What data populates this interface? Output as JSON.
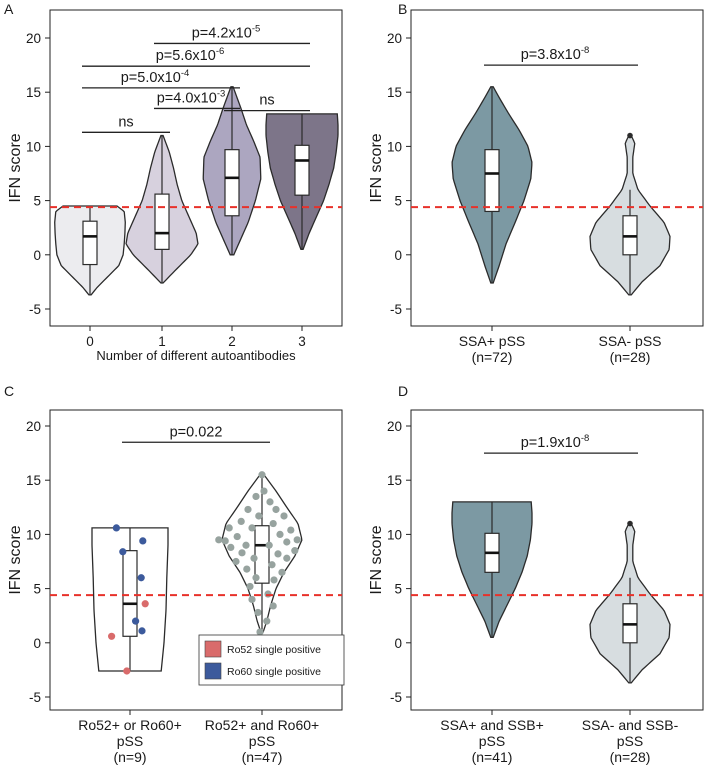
{
  "figure": {
    "threshold": 4.4,
    "colors": {
      "threshold": "#e8312a",
      "axis": "#222222",
      "violin_stroke": "#2b2b2b",
      "box_fill": "#ffffff",
      "ro52": "#d96b6b",
      "ro60": "#3c5a9c",
      "grey_point": "#97a39f"
    }
  },
  "chart_data": [
    {
      "panel": "A",
      "type": "violin",
      "ylabel": "IFN score",
      "xlabel": "Number of different autoantibodies",
      "ylim": [
        -6,
        21
      ],
      "yticks": [
        -5,
        0,
        5,
        10,
        15,
        20
      ],
      "categories": [
        "0",
        "1",
        "2",
        "3"
      ],
      "violins": [
        {
          "label": "0",
          "fill": "#ececef",
          "min": -3.7,
          "max": 4.5,
          "q1": -0.9,
          "median": 1.7,
          "q3": 3.1,
          "whisker_low": -3.7,
          "whisker_high": 4.5,
          "shape": [
            [
              -3.7,
              0.03
            ],
            [
              -3,
              0.2
            ],
            [
              -2,
              0.5
            ],
            [
              -1,
              0.8
            ],
            [
              0,
              0.92
            ],
            [
              1,
              0.95
            ],
            [
              2,
              0.97
            ],
            [
              3,
              0.98
            ],
            [
              4,
              0.95
            ],
            [
              4.5,
              0.75
            ]
          ]
        },
        {
          "label": "1",
          "fill": "#d7d1de",
          "min": -2.6,
          "max": 11.0,
          "q1": 0.5,
          "median": 2.0,
          "q3": 5.6,
          "whisker_low": -2.6,
          "whisker_high": 11.0,
          "shape": [
            [
              -2.6,
              0.03
            ],
            [
              -1.5,
              0.35
            ],
            [
              0,
              0.8
            ],
            [
              1,
              1.0
            ],
            [
              2,
              0.95
            ],
            [
              3.5,
              0.75
            ],
            [
              5,
              0.55
            ],
            [
              6.5,
              0.42
            ],
            [
              8,
              0.32
            ],
            [
              9.5,
              0.2
            ],
            [
              11,
              0.03
            ]
          ]
        },
        {
          "label": "2",
          "fill": "#aca6c0",
          "min": 0.0,
          "max": 15.5,
          "q1": 3.6,
          "median": 7.1,
          "q3": 9.7,
          "whisker_low": 0.0,
          "whisker_high": 15.5,
          "shape": [
            [
              0,
              0.05
            ],
            [
              1.5,
              0.25
            ],
            [
              3,
              0.45
            ],
            [
              5,
              0.65
            ],
            [
              7,
              0.8
            ],
            [
              9,
              0.78
            ],
            [
              10.5,
              0.6
            ],
            [
              12,
              0.4
            ],
            [
              13.5,
              0.25
            ],
            [
              15.5,
              0.03
            ]
          ]
        },
        {
          "label": "3",
          "fill": "#7d7589",
          "min": 0.5,
          "max": 13.0,
          "q1": 5.5,
          "median": 8.7,
          "q3": 10.1,
          "whisker_low": 0.5,
          "whisker_high": 13.0,
          "shape": [
            [
              0.5,
              0.03
            ],
            [
              2,
              0.2
            ],
            [
              3.5,
              0.4
            ],
            [
              5,
              0.6
            ],
            [
              6.5,
              0.75
            ],
            [
              8,
              0.88
            ],
            [
              9.5,
              0.95
            ],
            [
              11,
              1.0
            ],
            [
              12,
              1.0
            ],
            [
              13,
              0.98
            ]
          ]
        }
      ],
      "significance": [
        {
          "from": 0,
          "to": 1,
          "y": 11.3,
          "text": "ns"
        },
        {
          "from": 2,
          "to": 3,
          "y": 13.3,
          "text": "ns"
        },
        {
          "from": 1,
          "to": 2,
          "y": 13.5,
          "text": "p=4.0x10",
          "exp": "-3"
        },
        {
          "from": 0,
          "to": 2,
          "y": 15.4,
          "text": "p=5.0x10",
          "exp": "-4"
        },
        {
          "from": 0,
          "to": 3,
          "y": 17.4,
          "text": "p=5.6x10",
          "exp": "-6"
        },
        {
          "from": 1,
          "to": 3,
          "y": 19.5,
          "text": "p=4.2x10",
          "exp": "-5"
        }
      ]
    },
    {
      "panel": "B",
      "type": "violin",
      "ylabel": "IFN score",
      "xlabel": "",
      "ylim": [
        -6,
        21
      ],
      "yticks": [
        -5,
        0,
        5,
        10,
        15,
        20
      ],
      "categories": [
        "SSA+ pSS",
        "SSA- pSS"
      ],
      "n_labels": [
        "(n=72)",
        "(n=28)"
      ],
      "violins": [
        {
          "label": "SSA+ pSS",
          "fill": "#7c99a3",
          "min": -2.6,
          "max": 15.5,
          "q1": 4.0,
          "median": 7.5,
          "q3": 9.7,
          "whisker_low": -2.6,
          "whisker_high": 15.5,
          "shape": [
            [
              -2.6,
              0.03
            ],
            [
              -1,
              0.18
            ],
            [
              1,
              0.35
            ],
            [
              3,
              0.58
            ],
            [
              5,
              0.8
            ],
            [
              7,
              0.97
            ],
            [
              8.5,
              1.0
            ],
            [
              10,
              0.9
            ],
            [
              11.5,
              0.68
            ],
            [
              13,
              0.42
            ],
            [
              14.5,
              0.18
            ],
            [
              15.5,
              0.03
            ]
          ]
        },
        {
          "label": "SSA- pSS",
          "fill": "#d7dde0",
          "min": -3.7,
          "max": 11.0,
          "q1": 0.0,
          "median": 1.7,
          "q3": 3.6,
          "whisker_low": -3.7,
          "whisker_high": 6.0,
          "shape": [
            [
              -3.7,
              0.03
            ],
            [
              -2.5,
              0.3
            ],
            [
              -1,
              0.75
            ],
            [
              0.5,
              0.98
            ],
            [
              1.7,
              1.0
            ],
            [
              3,
              0.85
            ],
            [
              4.5,
              0.5
            ],
            [
              6,
              0.2
            ],
            [
              7.5,
              0.07
            ],
            [
              9,
              0.07
            ],
            [
              10.3,
              0.12
            ],
            [
              11,
              0.03
            ]
          ],
          "outliers": [
            11.0
          ]
        }
      ],
      "significance": [
        {
          "from": 0,
          "to": 1,
          "y": 17.5,
          "text": "p=3.8x10",
          "exp": "-8"
        }
      ]
    },
    {
      "panel": "C",
      "type": "violin",
      "ylabel": "IFN score",
      "xlabel": "",
      "ylim": [
        -6,
        21
      ],
      "yticks": [
        -5,
        0,
        5,
        10,
        15,
        20
      ],
      "categories": [
        "Ro52+ or Ro60+",
        "Ro52+ and Ro60+"
      ],
      "category_line2": [
        "pSS",
        "pSS"
      ],
      "n_labels": [
        "(n=9)",
        "(n=47)"
      ],
      "violins": [
        {
          "label": "Ro52+ or Ro60+",
          "fill": "#ffffff",
          "min": -2.6,
          "max": 10.6,
          "q1": 0.6,
          "median": 3.6,
          "q3": 8.5,
          "whisker_low": -2.6,
          "whisker_high": 10.6,
          "shape": [
            [
              -2.6,
              0.78
            ],
            [
              0,
              0.85
            ],
            [
              3,
              0.9
            ],
            [
              6,
              0.92
            ],
            [
              9,
              0.95
            ],
            [
              10.6,
              0.95
            ]
          ]
        },
        {
          "label": "Ro52+ and Ro60+",
          "fill": "#ffffff",
          "min": 1.0,
          "max": 15.5,
          "q1": 5.5,
          "median": 9.0,
          "q3": 10.8,
          "whisker_low": 1.0,
          "whisker_high": 15.5,
          "shape": [
            [
              1,
              0.03
            ],
            [
              2,
              0.12
            ],
            [
              3.5,
              0.22
            ],
            [
              5,
              0.35
            ],
            [
              6.5,
              0.55
            ],
            [
              8,
              0.82
            ],
            [
              9.5,
              1.0
            ],
            [
              11,
              0.9
            ],
            [
              12.5,
              0.62
            ],
            [
              14,
              0.35
            ],
            [
              15.5,
              0.05
            ]
          ]
        }
      ],
      "points": [
        {
          "group": 0,
          "y": 10.6,
          "dx": -0.34,
          "type": "ro60"
        },
        {
          "group": 0,
          "y": 9.4,
          "dx": 0.32,
          "type": "ro60"
        },
        {
          "group": 0,
          "y": 8.4,
          "dx": -0.18,
          "type": "ro60"
        },
        {
          "group": 0,
          "y": 6.0,
          "dx": 0.28,
          "type": "ro60"
        },
        {
          "group": 0,
          "y": 3.6,
          "dx": 0.38,
          "type": "ro52"
        },
        {
          "group": 0,
          "y": 2.0,
          "dx": 0.14,
          "type": "ro60"
        },
        {
          "group": 0,
          "y": 1.1,
          "dx": 0.3,
          "type": "ro60"
        },
        {
          "group": 0,
          "y": 0.6,
          "dx": -0.46,
          "type": "ro52"
        },
        {
          "group": 0,
          "y": -2.6,
          "dx": -0.08,
          "type": "ro52"
        },
        {
          "group": 1,
          "y": 15.5,
          "dx": 0.0,
          "type": "grey"
        },
        {
          "group": 1,
          "y": 14.0,
          "dx": 0.05,
          "type": "grey"
        },
        {
          "group": 1,
          "y": 13.5,
          "dx": -0.15,
          "type": "grey"
        },
        {
          "group": 1,
          "y": 13.0,
          "dx": 0.2,
          "type": "grey"
        },
        {
          "group": 1,
          "y": 12.3,
          "dx": -0.35,
          "type": "grey"
        },
        {
          "group": 1,
          "y": 12.3,
          "dx": 0.35,
          "type": "grey"
        },
        {
          "group": 1,
          "y": 11.7,
          "dx": -0.08,
          "type": "grey"
        },
        {
          "group": 1,
          "y": 11.7,
          "dx": 0.55,
          "type": "grey"
        },
        {
          "group": 1,
          "y": 11.2,
          "dx": -0.52,
          "type": "grey"
        },
        {
          "group": 1,
          "y": 11.0,
          "dx": 0.28,
          "type": "grey"
        },
        {
          "group": 1,
          "y": 10.6,
          "dx": -0.82,
          "type": "grey"
        },
        {
          "group": 1,
          "y": 10.6,
          "dx": -0.25,
          "type": "grey"
        },
        {
          "group": 1,
          "y": 10.4,
          "dx": 0.72,
          "type": "grey"
        },
        {
          "group": 1,
          "y": 10.0,
          "dx": 0.45,
          "type": "grey"
        },
        {
          "group": 1,
          "y": 9.8,
          "dx": -0.62,
          "type": "grey"
        },
        {
          "group": 1,
          "y": 9.5,
          "dx": -1.08,
          "type": "grey"
        },
        {
          "group": 1,
          "y": 9.5,
          "dx": 0.88,
          "type": "grey"
        },
        {
          "group": 1,
          "y": 9.4,
          "dx": -0.92,
          "type": "grey"
        },
        {
          "group": 1,
          "y": 9.3,
          "dx": 0.62,
          "type": "grey"
        },
        {
          "group": 1,
          "y": 9.0,
          "dx": -0.4,
          "type": "grey"
        },
        {
          "group": 1,
          "y": 9.0,
          "dx": 0.18,
          "type": "grey"
        },
        {
          "group": 1,
          "y": 8.8,
          "dx": -0.78,
          "type": "grey"
        },
        {
          "group": 1,
          "y": 8.5,
          "dx": 0.82,
          "type": "grey"
        },
        {
          "group": 1,
          "y": 8.3,
          "dx": -0.5,
          "type": "grey"
        },
        {
          "group": 1,
          "y": 8.2,
          "dx": 0.4,
          "type": "grey"
        },
        {
          "group": 1,
          "y": 7.8,
          "dx": -0.2,
          "type": "grey"
        },
        {
          "group": 1,
          "y": 7.8,
          "dx": 0.62,
          "type": "grey"
        },
        {
          "group": 1,
          "y": 7.5,
          "dx": -0.65,
          "type": "grey"
        },
        {
          "group": 1,
          "y": 7.2,
          "dx": 0.25,
          "type": "grey"
        },
        {
          "group": 1,
          "y": 6.8,
          "dx": -0.38,
          "type": "grey"
        },
        {
          "group": 1,
          "y": 6.5,
          "dx": 0.5,
          "type": "grey"
        },
        {
          "group": 1,
          "y": 6.0,
          "dx": -0.15,
          "type": "grey"
        },
        {
          "group": 1,
          "y": 5.8,
          "dx": 0.3,
          "type": "grey"
        },
        {
          "group": 1,
          "y": 5.2,
          "dx": -0.3,
          "type": "grey"
        },
        {
          "group": 1,
          "y": 4.5,
          "dx": 0.15,
          "type": "grey"
        },
        {
          "group": 1,
          "y": 4.0,
          "dx": -0.25,
          "type": "grey"
        },
        {
          "group": 1,
          "y": 3.4,
          "dx": 0.28,
          "type": "grey"
        },
        {
          "group": 1,
          "y": 2.8,
          "dx": -0.1,
          "type": "grey"
        },
        {
          "group": 1,
          "y": 2.0,
          "dx": 0.12,
          "type": "grey"
        },
        {
          "group": 1,
          "y": 1.0,
          "dx": -0.05,
          "type": "grey"
        }
      ],
      "legend": [
        {
          "label": "Ro52 single positive",
          "type": "ro52"
        },
        {
          "label": "Ro60 single positive",
          "type": "ro60"
        }
      ],
      "significance": [
        {
          "from": 0,
          "to": 1,
          "y": 18.5,
          "text": "p=0.022"
        }
      ]
    },
    {
      "panel": "D",
      "type": "violin",
      "ylabel": "IFN score",
      "xlabel": "",
      "ylim": [
        -6,
        21
      ],
      "yticks": [
        -5,
        0,
        5,
        10,
        15,
        20
      ],
      "categories": [
        "SSA+ and SSB+",
        "SSA- and SSB-"
      ],
      "category_line2": [
        "pSS",
        "pSS"
      ],
      "n_labels": [
        "(n=41)",
        "(n=28)"
      ],
      "violins": [
        {
          "label": "SSA+ and SSB+",
          "fill": "#7c99a3",
          "min": 0.5,
          "max": 13.0,
          "q1": 6.5,
          "median": 8.3,
          "q3": 10.1,
          "whisker_low": 0.5,
          "whisker_high": 13.0,
          "shape": [
            [
              0.5,
              0.03
            ],
            [
              2,
              0.18
            ],
            [
              3.5,
              0.38
            ],
            [
              5,
              0.58
            ],
            [
              6.5,
              0.75
            ],
            [
              8,
              0.88
            ],
            [
              9.5,
              0.96
            ],
            [
              11,
              1.0
            ],
            [
              12,
              1.0
            ],
            [
              13,
              0.98
            ]
          ]
        },
        {
          "label": "SSA- and SSB-",
          "fill": "#d7dde0",
          "min": -3.7,
          "max": 11.0,
          "q1": 0.0,
          "median": 1.7,
          "q3": 3.6,
          "whisker_low": -3.7,
          "whisker_high": 6.0,
          "shape": [
            [
              -3.7,
              0.03
            ],
            [
              -2.5,
              0.3
            ],
            [
              -1,
              0.75
            ],
            [
              0.5,
              0.98
            ],
            [
              1.7,
              1.0
            ],
            [
              3,
              0.85
            ],
            [
              4.5,
              0.5
            ],
            [
              6,
              0.2
            ],
            [
              7.5,
              0.07
            ],
            [
              9,
              0.07
            ],
            [
              10.3,
              0.12
            ],
            [
              11,
              0.03
            ]
          ],
          "outliers": [
            11.0
          ]
        }
      ],
      "significance": [
        {
          "from": 0,
          "to": 1,
          "y": 17.5,
          "text": "p=1.9x10",
          "exp": "-8"
        }
      ]
    }
  ]
}
